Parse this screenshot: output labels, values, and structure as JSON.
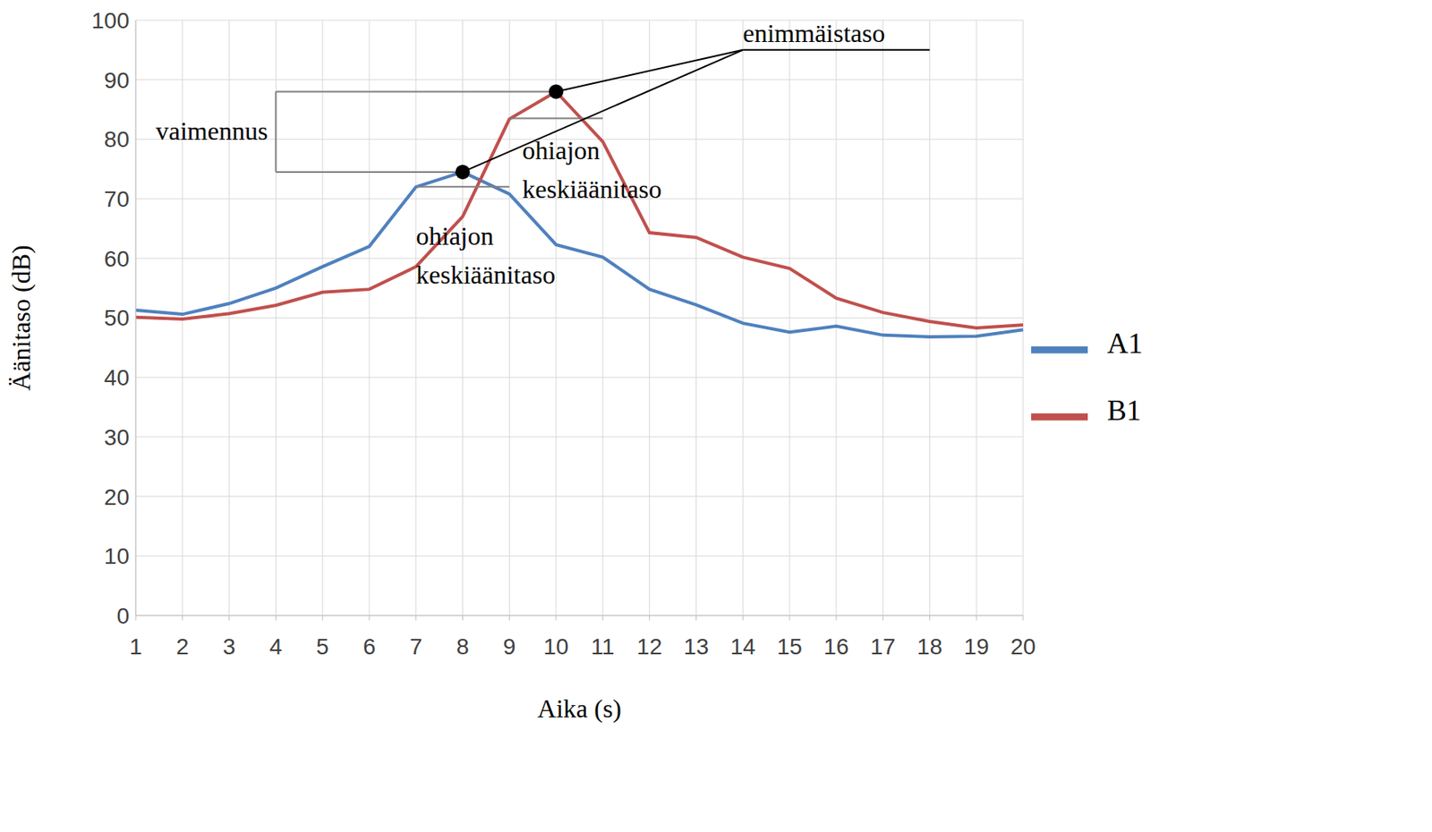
{
  "chart_data": {
    "type": "line",
    "x_label": "Aika (s)",
    "y_label": "Äänitaso (dB)",
    "categories": [
      "1",
      "2",
      "3",
      "4",
      "5",
      "6",
      "7",
      "8",
      "9",
      "10",
      "11",
      "12",
      "13",
      "14",
      "15",
      "16",
      "17",
      "18",
      "19",
      "20"
    ],
    "series": [
      {
        "name": "A1",
        "color": "#4f81bd",
        "values": [
          51.3,
          50.6,
          52.4,
          55,
          58.6,
          62,
          72,
          74.5,
          70.8,
          62.3,
          60.2,
          54.8,
          52.2,
          49.1,
          47.6,
          48.6,
          47.1,
          46.8,
          46.9,
          48
        ]
      },
      {
        "name": "B1",
        "color": "#c0504d",
        "values": [
          50.1,
          49.8,
          50.7,
          52.1,
          54.3,
          54.8,
          58.6,
          67,
          83.4,
          88,
          79.6,
          64.3,
          63.5,
          60.2,
          58.3,
          53.3,
          50.9,
          49.4,
          48.3,
          48.8
        ]
      }
    ],
    "ylim": [
      0,
      100
    ],
    "yticks": [
      0,
      10,
      20,
      30,
      40,
      50,
      60,
      70,
      80,
      90,
      100
    ],
    "grid": true,
    "legend": "right",
    "annotations": {
      "max_label": "enimmäistaso",
      "difference_label": "vaimennus",
      "average_label": "ohiajon keskiäänitaso",
      "average_levels": [
        72,
        83.5
      ]
    }
  }
}
